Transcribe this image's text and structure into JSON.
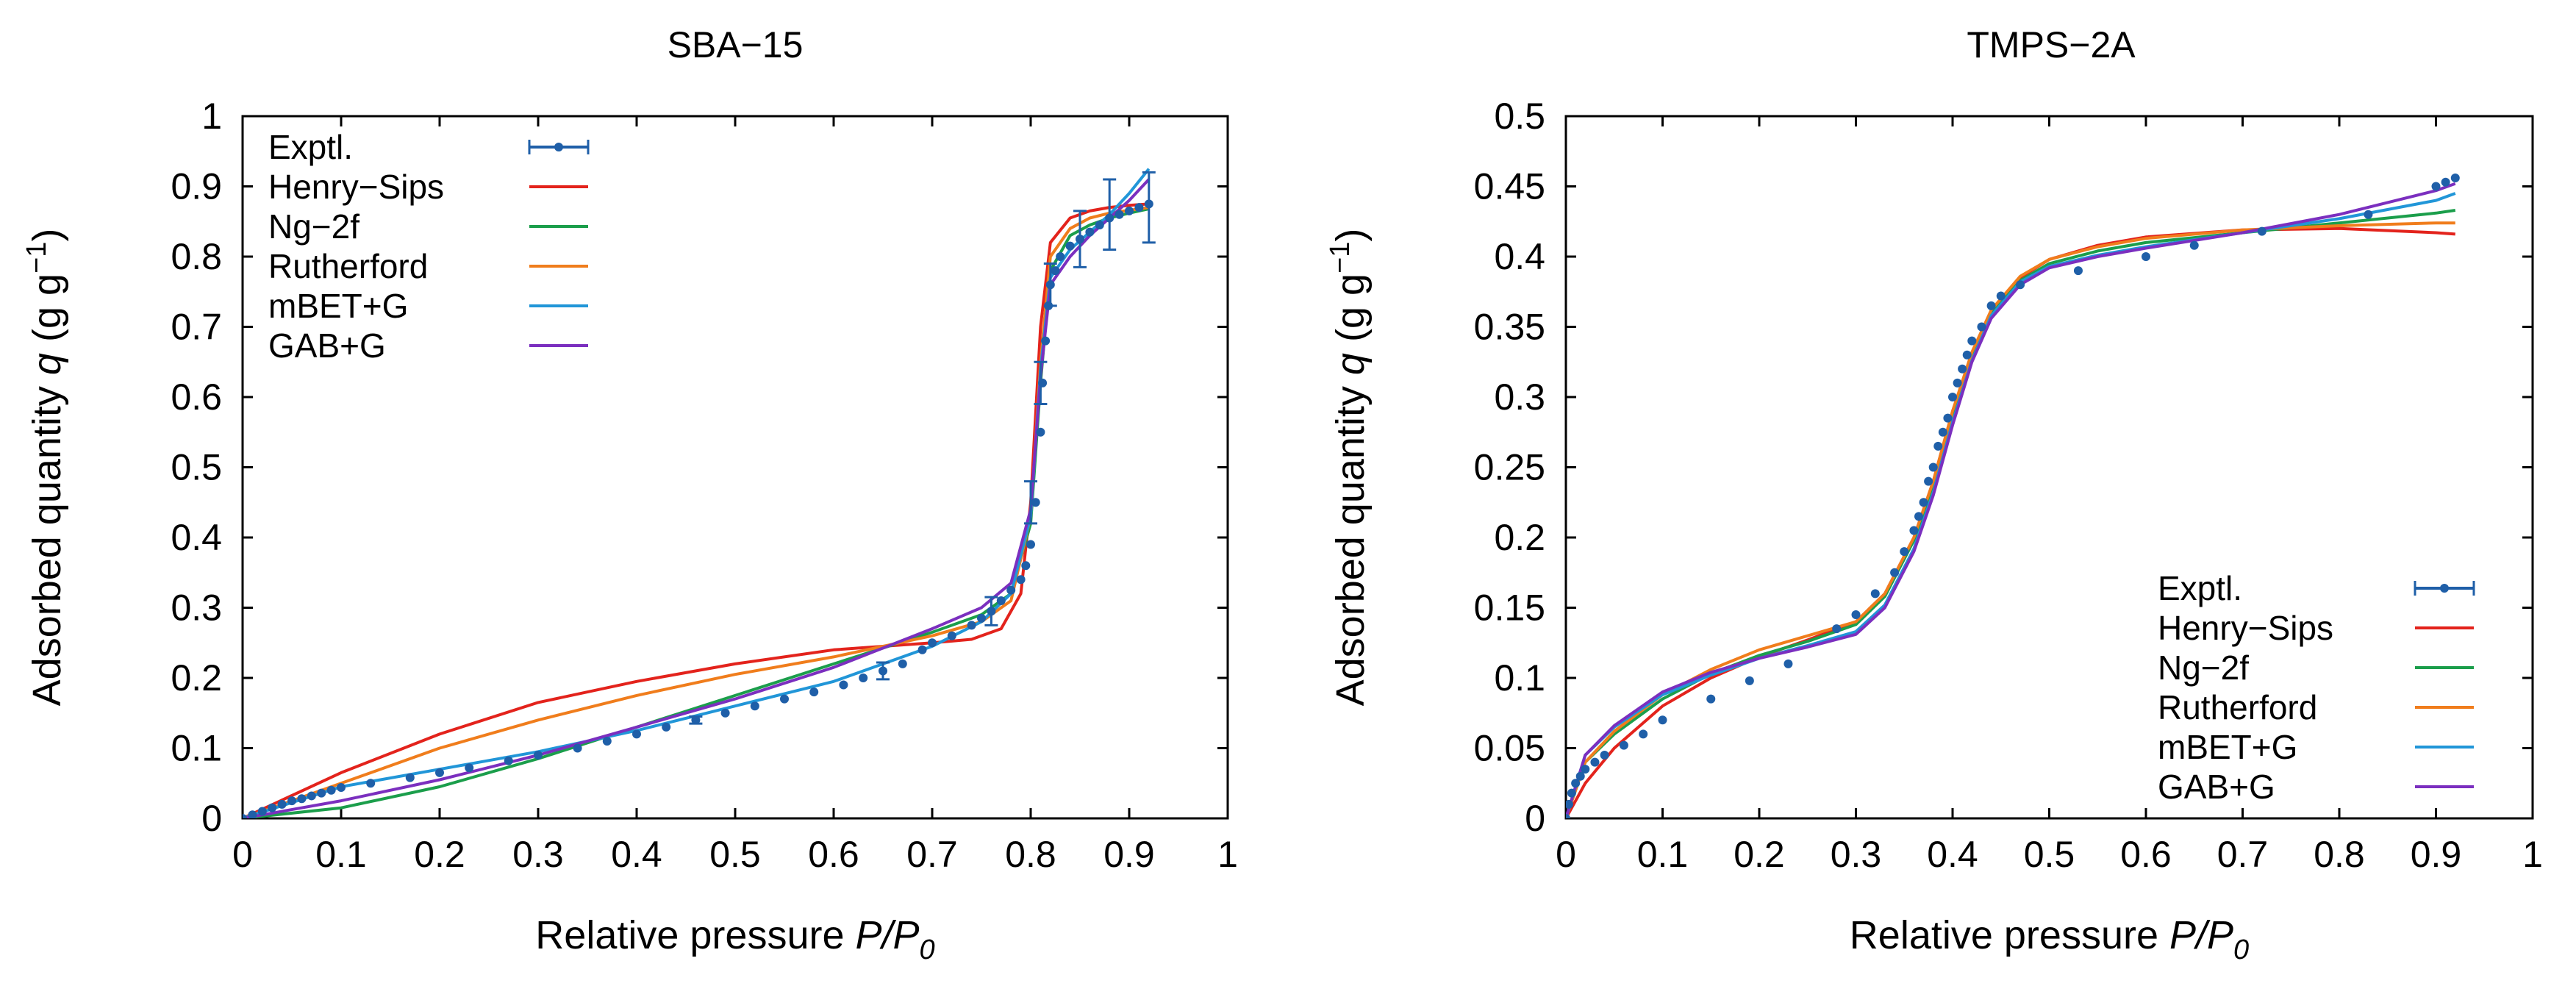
{
  "chart_data": [
    {
      "type": "line",
      "title": "SBA−15",
      "xlabel_prefix": "Relative pressure ",
      "xlabel_var": "P/P",
      "xlabel_sub": "0",
      "ylabel_prefix": "Adsorbed quantity ",
      "ylabel_var": "q",
      "ylabel_unit_a": " (g g",
      "ylabel_sup": "−1",
      "ylabel_unit_b": ")",
      "xlim": [
        0,
        1
      ],
      "ylim": [
        0,
        1
      ],
      "xticks": [
        "0",
        "0.1",
        "0.2",
        "0.3",
        "0.4",
        "0.5",
        "0.6",
        "0.7",
        "0.8",
        "0.9",
        "1"
      ],
      "yticks": [
        "0",
        "0.1",
        "0.2",
        "0.3",
        "0.4",
        "0.5",
        "0.6",
        "0.7",
        "0.8",
        "0.9",
        "1"
      ],
      "legend_position": "top-left",
      "experimental": {
        "name": "Exptl.",
        "color": "#1f5fa8",
        "x": [
          0.0,
          0.01,
          0.02,
          0.03,
          0.04,
          0.05,
          0.06,
          0.07,
          0.08,
          0.09,
          0.1,
          0.13,
          0.17,
          0.2,
          0.23,
          0.27,
          0.3,
          0.34,
          0.37,
          0.4,
          0.43,
          0.46,
          0.49,
          0.52,
          0.55,
          0.58,
          0.61,
          0.63,
          0.65,
          0.67,
          0.69,
          0.7,
          0.72,
          0.74,
          0.75,
          0.76,
          0.77,
          0.78,
          0.79,
          0.795,
          0.8,
          0.805,
          0.81,
          0.812,
          0.815,
          0.818,
          0.82,
          0.825,
          0.83,
          0.84,
          0.85,
          0.86,
          0.87,
          0.88,
          0.89,
          0.9,
          0.91,
          0.92
        ],
        "y": [
          0.0,
          0.005,
          0.01,
          0.015,
          0.02,
          0.025,
          0.028,
          0.032,
          0.036,
          0.04,
          0.044,
          0.05,
          0.058,
          0.065,
          0.072,
          0.082,
          0.09,
          0.1,
          0.11,
          0.12,
          0.13,
          0.14,
          0.15,
          0.16,
          0.17,
          0.18,
          0.19,
          0.2,
          0.21,
          0.22,
          0.24,
          0.25,
          0.26,
          0.275,
          0.285,
          0.295,
          0.31,
          0.325,
          0.34,
          0.36,
          0.39,
          0.45,
          0.55,
          0.62,
          0.68,
          0.73,
          0.76,
          0.78,
          0.8,
          0.815,
          0.825,
          0.835,
          0.845,
          0.855,
          0.86,
          0.865,
          0.87,
          0.875
        ],
        "yerr_points": [
          [
            0.46,
            0.14,
            0.005
          ],
          [
            0.65,
            0.21,
            0.012
          ],
          [
            0.76,
            0.295,
            0.02
          ],
          [
            0.8,
            0.45,
            0.03
          ],
          [
            0.81,
            0.62,
            0.03
          ],
          [
            0.82,
            0.76,
            0.03
          ],
          [
            0.85,
            0.825,
            0.04
          ],
          [
            0.88,
            0.86,
            0.05
          ],
          [
            0.92,
            0.87,
            0.05
          ]
        ]
      },
      "series": [
        {
          "name": "Henry−Sips",
          "color": "#e3231c",
          "x": [
            0,
            0.1,
            0.2,
            0.3,
            0.4,
            0.5,
            0.6,
            0.7,
            0.74,
            0.77,
            0.79,
            0.8,
            0.81,
            0.82,
            0.84,
            0.86,
            0.88,
            0.9,
            0.92
          ],
          "y": [
            0,
            0.065,
            0.12,
            0.165,
            0.195,
            0.22,
            0.24,
            0.25,
            0.255,
            0.27,
            0.32,
            0.45,
            0.7,
            0.82,
            0.855,
            0.865,
            0.87,
            0.873,
            0.875
          ]
        },
        {
          "name": "Ng−2f",
          "color": "#1b9e4b",
          "x": [
            0,
            0.1,
            0.2,
            0.3,
            0.4,
            0.5,
            0.6,
            0.7,
            0.75,
            0.78,
            0.8,
            0.81,
            0.82,
            0.84,
            0.86,
            0.88,
            0.9,
            0.92
          ],
          "y": [
            0,
            0.015,
            0.045,
            0.085,
            0.13,
            0.175,
            0.22,
            0.265,
            0.29,
            0.32,
            0.42,
            0.62,
            0.78,
            0.83,
            0.845,
            0.855,
            0.862,
            0.868
          ]
        },
        {
          "name": "Rutherford",
          "color": "#f07d1c",
          "x": [
            0,
            0.1,
            0.2,
            0.3,
            0.4,
            0.5,
            0.6,
            0.7,
            0.75,
            0.78,
            0.8,
            0.81,
            0.82,
            0.84,
            0.86,
            0.88,
            0.9,
            0.92
          ],
          "y": [
            0,
            0.05,
            0.1,
            0.14,
            0.175,
            0.205,
            0.23,
            0.26,
            0.28,
            0.31,
            0.43,
            0.65,
            0.8,
            0.84,
            0.855,
            0.862,
            0.866,
            0.87
          ]
        },
        {
          "name": "mBET+G",
          "color": "#2196d8",
          "x": [
            0,
            0.1,
            0.2,
            0.3,
            0.4,
            0.5,
            0.6,
            0.7,
            0.75,
            0.78,
            0.8,
            0.81,
            0.82,
            0.84,
            0.86,
            0.88,
            0.9,
            0.92
          ],
          "y": [
            0,
            0.045,
            0.07,
            0.095,
            0.125,
            0.16,
            0.195,
            0.245,
            0.28,
            0.32,
            0.43,
            0.64,
            0.77,
            0.81,
            0.835,
            0.86,
            0.89,
            0.925
          ]
        },
        {
          "name": "GAB+G",
          "color": "#7b2fbf",
          "x": [
            0,
            0.1,
            0.2,
            0.3,
            0.4,
            0.5,
            0.6,
            0.7,
            0.75,
            0.78,
            0.8,
            0.81,
            0.82,
            0.84,
            0.86,
            0.88,
            0.9,
            0.92
          ],
          "y": [
            0,
            0.025,
            0.055,
            0.09,
            0.13,
            0.17,
            0.215,
            0.27,
            0.3,
            0.335,
            0.44,
            0.63,
            0.76,
            0.8,
            0.83,
            0.855,
            0.88,
            0.91
          ]
        }
      ]
    },
    {
      "type": "line",
      "title": "TMPS−2A",
      "xlabel_prefix": "Relative pressure ",
      "xlabel_var": "P/P",
      "xlabel_sub": "0",
      "ylabel_prefix": "Adsorbed quantity ",
      "ylabel_var": "q",
      "ylabel_unit_a": " (g g",
      "ylabel_sup": "−1",
      "ylabel_unit_b": ")",
      "xlim": [
        0,
        1
      ],
      "ylim": [
        0,
        0.5
      ],
      "xticks": [
        "0",
        "0.1",
        "0.2",
        "0.3",
        "0.4",
        "0.5",
        "0.6",
        "0.7",
        "0.8",
        "0.9",
        "1"
      ],
      "yticks": [
        "0",
        "0.05",
        "0.1",
        "0.15",
        "0.2",
        "0.25",
        "0.3",
        "0.35",
        "0.4",
        "0.45",
        "0.5"
      ],
      "legend_position": "bottom-right",
      "experimental": {
        "name": "Exptl.",
        "color": "#1f5fa8",
        "x": [
          0.0,
          0.003,
          0.006,
          0.01,
          0.015,
          0.02,
          0.03,
          0.04,
          0.06,
          0.08,
          0.1,
          0.15,
          0.19,
          0.23,
          0.28,
          0.3,
          0.32,
          0.34,
          0.35,
          0.36,
          0.365,
          0.37,
          0.375,
          0.38,
          0.385,
          0.39,
          0.395,
          0.4,
          0.405,
          0.41,
          0.415,
          0.42,
          0.43,
          0.44,
          0.45,
          0.47,
          0.53,
          0.6,
          0.65,
          0.72,
          0.83,
          0.9,
          0.91,
          0.92
        ],
        "y": [
          0.0,
          0.01,
          0.018,
          0.025,
          0.03,
          0.035,
          0.04,
          0.045,
          0.052,
          0.06,
          0.07,
          0.085,
          0.098,
          0.11,
          0.135,
          0.145,
          0.16,
          0.175,
          0.19,
          0.205,
          0.215,
          0.225,
          0.24,
          0.25,
          0.265,
          0.275,
          0.285,
          0.3,
          0.31,
          0.32,
          0.33,
          0.34,
          0.35,
          0.365,
          0.372,
          0.38,
          0.39,
          0.4,
          0.408,
          0.418,
          0.43,
          0.45,
          0.453,
          0.456
        ]
      },
      "yerr_points": [],
      "series": [
        {
          "name": "Henry−Sips",
          "color": "#e3231c",
          "x": [
            0,
            0.02,
            0.05,
            0.1,
            0.15,
            0.2,
            0.25,
            0.3,
            0.33,
            0.36,
            0.38,
            0.4,
            0.42,
            0.44,
            0.47,
            0.5,
            0.55,
            0.6,
            0.7,
            0.8,
            0.9,
            0.92
          ],
          "y": [
            0,
            0.025,
            0.05,
            0.08,
            0.1,
            0.115,
            0.127,
            0.14,
            0.16,
            0.2,
            0.24,
            0.29,
            0.33,
            0.36,
            0.385,
            0.398,
            0.408,
            0.414,
            0.419,
            0.42,
            0.417,
            0.416
          ]
        },
        {
          "name": "Ng−2f",
          "color": "#1b9e4b",
          "x": [
            0,
            0.02,
            0.05,
            0.1,
            0.15,
            0.2,
            0.25,
            0.3,
            0.33,
            0.36,
            0.38,
            0.4,
            0.42,
            0.44,
            0.47,
            0.5,
            0.55,
            0.6,
            0.7,
            0.8,
            0.9,
            0.92
          ],
          "y": [
            0,
            0.04,
            0.06,
            0.085,
            0.103,
            0.116,
            0.126,
            0.138,
            0.158,
            0.198,
            0.238,
            0.288,
            0.33,
            0.36,
            0.383,
            0.395,
            0.404,
            0.41,
            0.417,
            0.424,
            0.431,
            0.433
          ]
        },
        {
          "name": "Rutherford",
          "color": "#f07d1c",
          "x": [
            0,
            0.02,
            0.05,
            0.1,
            0.15,
            0.2,
            0.25,
            0.3,
            0.33,
            0.36,
            0.38,
            0.4,
            0.42,
            0.44,
            0.47,
            0.5,
            0.55,
            0.6,
            0.7,
            0.8,
            0.9,
            0.92
          ],
          "y": [
            0,
            0.04,
            0.062,
            0.088,
            0.106,
            0.12,
            0.13,
            0.14,
            0.16,
            0.2,
            0.24,
            0.29,
            0.332,
            0.362,
            0.386,
            0.398,
            0.407,
            0.413,
            0.419,
            0.422,
            0.424,
            0.424
          ]
        },
        {
          "name": "mBET+G",
          "color": "#2196d8",
          "x": [
            0,
            0.02,
            0.05,
            0.1,
            0.15,
            0.2,
            0.25,
            0.3,
            0.33,
            0.36,
            0.38,
            0.4,
            0.42,
            0.44,
            0.47,
            0.5,
            0.55,
            0.6,
            0.7,
            0.8,
            0.9,
            0.92
          ],
          "y": [
            0,
            0.045,
            0.065,
            0.088,
            0.102,
            0.114,
            0.123,
            0.133,
            0.152,
            0.192,
            0.232,
            0.282,
            0.326,
            0.358,
            0.382,
            0.393,
            0.401,
            0.407,
            0.417,
            0.427,
            0.44,
            0.445
          ]
        },
        {
          "name": "GAB+G",
          "color": "#7b2fbf",
          "x": [
            0,
            0.02,
            0.05,
            0.1,
            0.15,
            0.2,
            0.25,
            0.3,
            0.33,
            0.36,
            0.38,
            0.4,
            0.42,
            0.44,
            0.47,
            0.5,
            0.55,
            0.6,
            0.7,
            0.8,
            0.9,
            0.92
          ],
          "y": [
            0,
            0.045,
            0.066,
            0.09,
            0.104,
            0.114,
            0.122,
            0.131,
            0.15,
            0.19,
            0.23,
            0.28,
            0.325,
            0.356,
            0.38,
            0.392,
            0.4,
            0.406,
            0.417,
            0.43,
            0.447,
            0.452
          ]
        }
      ]
    }
  ]
}
